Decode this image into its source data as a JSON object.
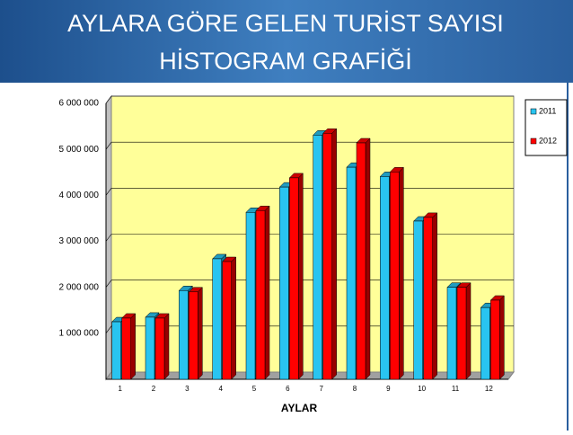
{
  "chart_data": {
    "type": "bar3d",
    "title": [
      "AYLARA GÖRE GELEN TURİST SAYISI",
      "HİSTOGRAM GRAFİĞİ"
    ],
    "x_label": "AYLAR",
    "categories": [
      "1",
      "2",
      "3",
      "4",
      "5",
      "6",
      "7",
      "8",
      "9",
      "10",
      "11",
      "12"
    ],
    "series": [
      {
        "name": "2011",
        "color": "#29c4f0",
        "values": [
          1250000,
          1350000,
          1930000,
          2620000,
          3630000,
          4180000,
          5310000,
          4610000,
          4410000,
          3440000,
          2000000,
          1560000
        ]
      },
      {
        "name": "2012",
        "color": "#ff0000",
        "values": [
          1330000,
          1330000,
          1900000,
          2560000,
          3670000,
          4380000,
          5350000,
          5140000,
          4510000,
          3520000,
          2000000,
          1720000
        ]
      }
    ],
    "ylim": [
      0,
      6000000
    ],
    "yticks": [
      {
        "value": 1000000,
        "label": "1 000 000"
      },
      {
        "value": 2000000,
        "label": "2 000 000"
      },
      {
        "value": 3000000,
        "label": "3 000 000"
      },
      {
        "value": 4000000,
        "label": "4 000 000"
      },
      {
        "value": 5000000,
        "label": "5 000 000"
      },
      {
        "value": 6000000,
        "label": "6 000 000"
      }
    ],
    "grid": true,
    "legend": "right"
  }
}
